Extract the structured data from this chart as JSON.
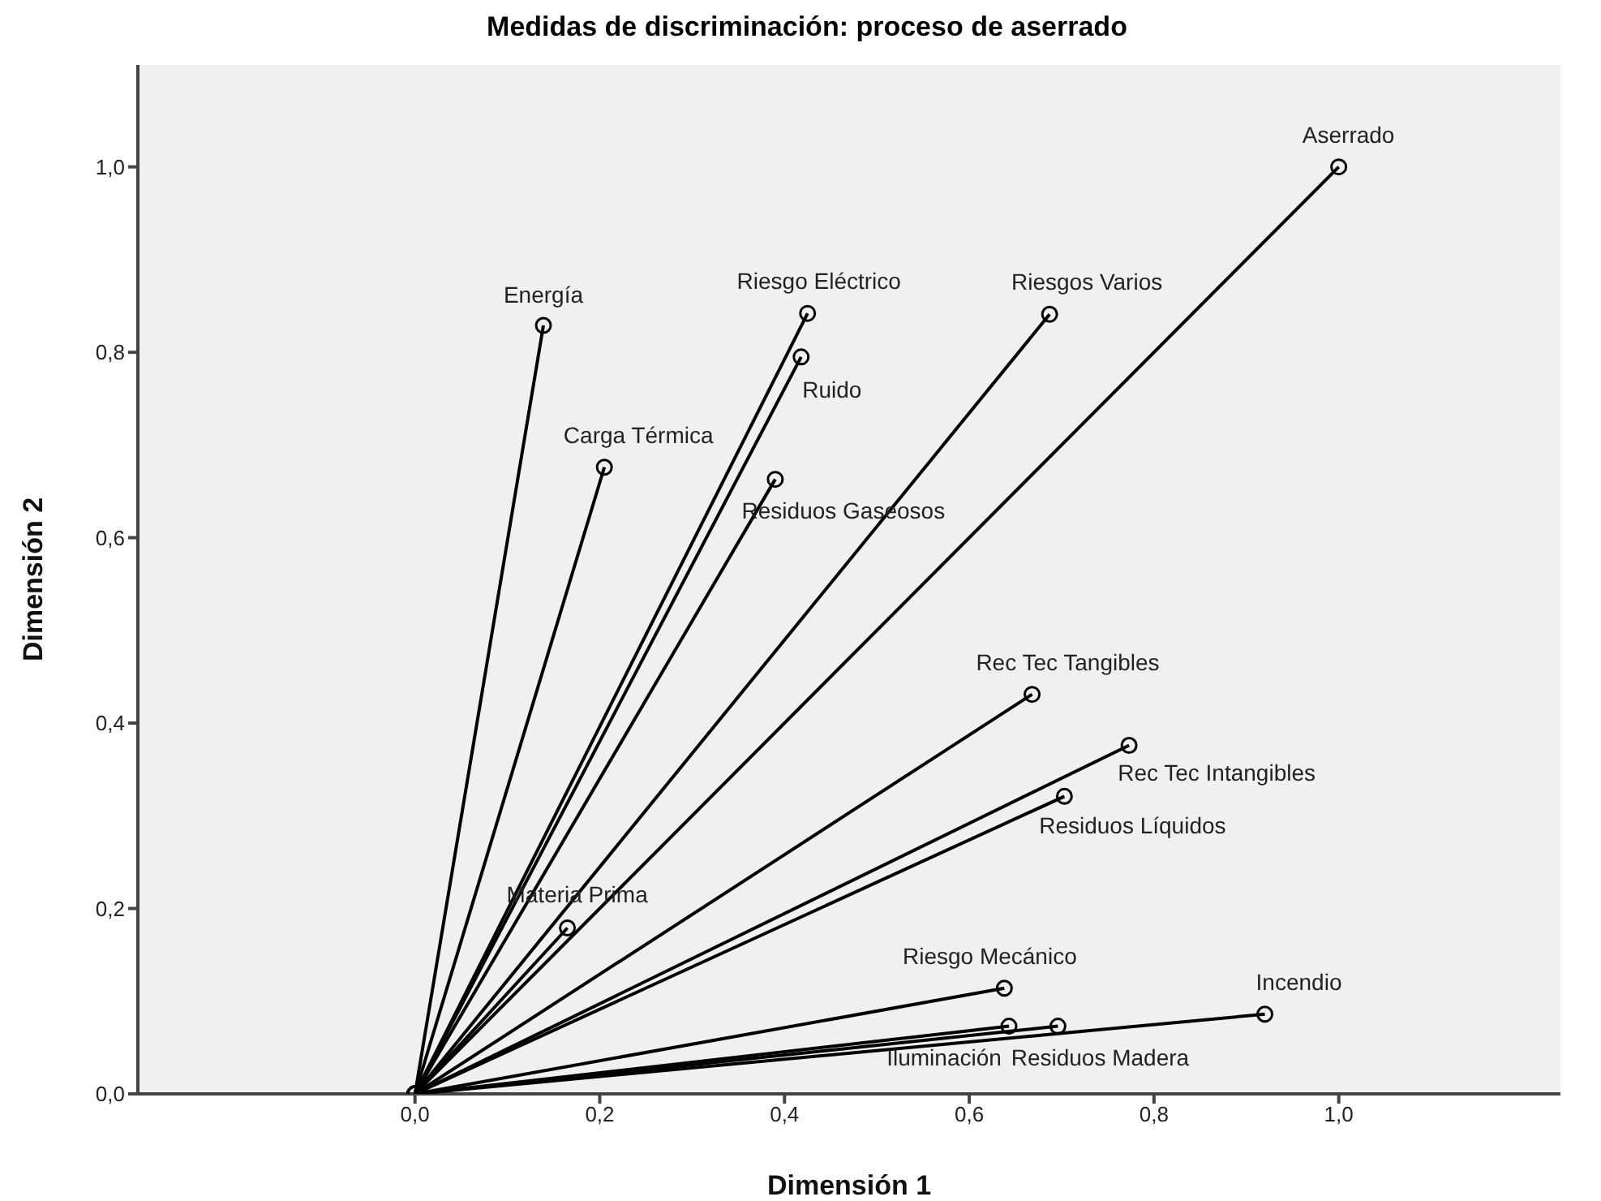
{
  "chart_data": {
    "type": "line",
    "title": "Medidas de discriminación: proceso de aserrado",
    "xlabel": "Dimensión 1",
    "ylabel": "Dimensión 2",
    "marker": "circle",
    "grid": false,
    "xlim": [
      -0.3,
      1.24
    ],
    "ylim": [
      0,
      1.11
    ],
    "xticks": [
      {
        "value": 0,
        "label": "0,0"
      },
      {
        "value": 0.2,
        "label": "0,2"
      },
      {
        "value": 0.4,
        "label": "0,4"
      },
      {
        "value": 0.6,
        "label": "0,6"
      },
      {
        "value": 0.8,
        "label": "0,8"
      },
      {
        "value": 1,
        "label": "1,0"
      }
    ],
    "yticks": [
      {
        "value": 0,
        "label": "0,0"
      },
      {
        "value": 0.2,
        "label": "0,2"
      },
      {
        "value": 0.4,
        "label": "0,4"
      },
      {
        "value": 0.6,
        "label": "0,6"
      },
      {
        "value": 0.8,
        "label": "0,8"
      },
      {
        "value": 1,
        "label": "1,0"
      }
    ],
    "series": [
      {
        "color": "#000000",
        "x": [
          0,
          0.139
        ],
        "values": [
          0,
          0.829
        ]
      },
      {
        "color": "#000000",
        "x": [
          0,
          0.425
        ],
        "values": [
          0,
          0.842
        ]
      },
      {
        "color": "#000000",
        "x": [
          0,
          0.418
        ],
        "values": [
          0,
          0.795
        ]
      },
      {
        "color": "#000000",
        "x": [
          0,
          0.205
        ],
        "values": [
          0,
          0.676
        ]
      },
      {
        "color": "#000000",
        "x": [
          0,
          0.39
        ],
        "values": [
          0,
          0.663
        ]
      },
      {
        "color": "#000000",
        "x": [
          0,
          0.687
        ],
        "values": [
          0,
          0.841
        ]
      },
      {
        "color": "#000000",
        "x": [
          0,
          1.0
        ],
        "values": [
          0,
          1.0
        ]
      },
      {
        "color": "#000000",
        "x": [
          0,
          0.668
        ],
        "values": [
          0,
          0.431
        ]
      },
      {
        "color": "#000000",
        "x": [
          0,
          0.773
        ],
        "values": [
          0,
          0.376
        ]
      },
      {
        "color": "#000000",
        "x": [
          0,
          0.703
        ],
        "values": [
          0,
          0.321
        ]
      },
      {
        "color": "#000000",
        "x": [
          0,
          0.638
        ],
        "values": [
          0,
          0.114
        ]
      },
      {
        "color": "#000000",
        "x": [
          0,
          0.92
        ],
        "values": [
          0,
          0.086
        ]
      },
      {
        "color": "#000000",
        "x": [
          0,
          0.643
        ],
        "values": [
          0,
          0.073
        ]
      },
      {
        "color": "#000000",
        "x": [
          0,
          0.696
        ],
        "values": [
          0,
          0.073
        ]
      },
      {
        "color": "#000000",
        "x": [
          0,
          0.165
        ],
        "values": [
          0,
          0.179
        ]
      }
    ],
    "annotations": [
      {
        "text": "Energía",
        "x": 0.139,
        "y": 0.829
      },
      {
        "text": "Riesgo Eléctrico",
        "x": 0.425,
        "y": 0.842
      },
      {
        "text": "Ruido",
        "x": 0.418,
        "y": 0.795
      },
      {
        "text": "Carga Térmica",
        "x": 0.205,
        "y": 0.676
      },
      {
        "text": "Residuos Gaseosos",
        "x": 0.39,
        "y": 0.663
      },
      {
        "text": "Riesgos Varios",
        "x": 0.687,
        "y": 0.841
      },
      {
        "text": "Aserrado",
        "x": 1.0,
        "y": 1.0
      },
      {
        "text": "Rec Tec Tangibles",
        "x": 0.668,
        "y": 0.431
      },
      {
        "text": "Rec Tec Intangibles",
        "x": 0.773,
        "y": 0.376
      },
      {
        "text": "Residuos Líquidos",
        "x": 0.703,
        "y": 0.321
      },
      {
        "text": "Riesgo Mecánico",
        "x": 0.638,
        "y": 0.114
      },
      {
        "text": "Incendio",
        "x": 0.92,
        "y": 0.086
      },
      {
        "text": "Iluminación",
        "x": 0.643,
        "y": 0.073
      },
      {
        "text": "Residuos Madera",
        "x": 0.696,
        "y": 0.073
      },
      {
        "text": "Materia Prima",
        "x": 0.165,
        "y": 0.179
      }
    ]
  }
}
